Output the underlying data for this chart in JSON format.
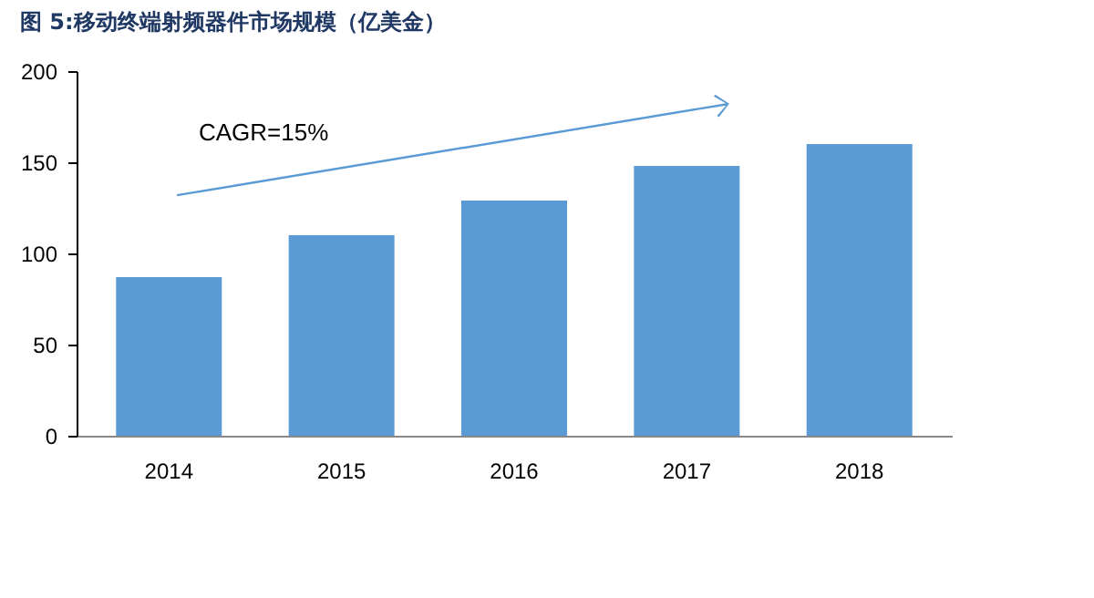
{
  "chart_data": {
    "type": "bar",
    "title": "图 5:移动终端射频器件市场规模（亿美金）",
    "categories": [
      "2014",
      "2015",
      "2016",
      "2017",
      "2018"
    ],
    "values": [
      87,
      110,
      129,
      148,
      160
    ],
    "color": "#5b9bd5",
    "ylim": [
      0,
      200
    ],
    "yticks": [
      0,
      50,
      100,
      150,
      200
    ],
    "grid": false,
    "annotations": [
      "CAGR=15%"
    ]
  }
}
